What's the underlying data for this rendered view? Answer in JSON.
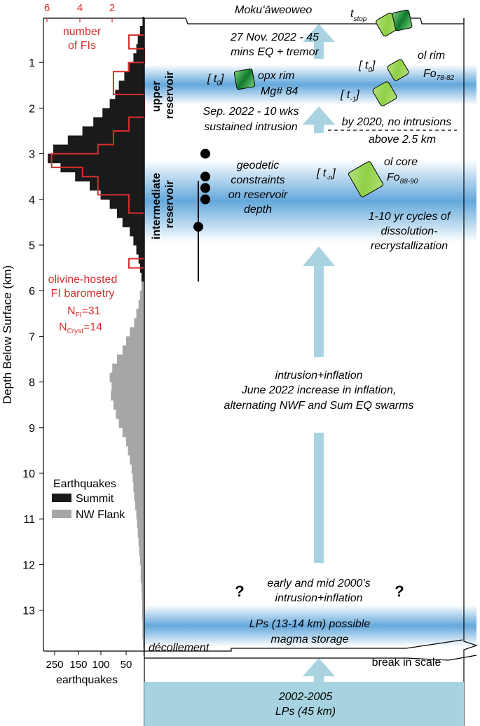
{
  "colors": {
    "summit": "#1a1a1a",
    "nw_flank": "#a6a6a6",
    "fi_line": "#d62e2e",
    "band": "#5ba3d9",
    "arrow": "#a9d3e0",
    "bottom_box": "#a7d3e0",
    "crystal_light": "#9ed858",
    "crystal_dark": "#1e8a36"
  },
  "left_panel": {
    "y_axis_label": "Depth Below Surface (km)",
    "x_axis_label": "earthquakes",
    "x_ticks": [
      "250",
      "150",
      "100",
      "50"
    ],
    "top_ticks": [
      "6",
      "4",
      "2"
    ],
    "top_label_line1": "number",
    "top_label_line2": "of FIs",
    "fi_label_line1": "olivine-hosted",
    "fi_label_line2": "FI barometry",
    "nfi_main": "N",
    "nfi_sub": "FI",
    "nfi_value": "=31",
    "ncryst_main": "N",
    "ncryst_sub": "Cryst",
    "ncryst_value": "=14",
    "legend_title": "Earthquakes",
    "legend_summit": "Summit",
    "legend_nwflank": "NW Flank"
  },
  "depth_ticks": [
    "1",
    "2",
    "3",
    "4",
    "5",
    "6",
    "7",
    "8",
    "9",
    "10",
    "11",
    "12",
    "13"
  ],
  "chart_data": {
    "type": "bar",
    "orientation": "horizontal",
    "y_label": "Depth Below Surface (km)",
    "x_label": "earthquakes",
    "series": [
      {
        "name": "Summit",
        "depth_km": [
          0.1,
          0.3,
          0.5,
          0.7,
          0.9,
          1.1,
          1.3,
          1.5,
          1.7,
          1.9,
          2.1,
          2.3,
          2.5,
          2.7,
          2.9,
          3.1,
          3.3,
          3.5,
          3.7,
          3.9,
          4.1,
          4.3,
          4.5,
          4.7,
          4.9,
          5.1,
          5.3,
          5.5,
          5.7
        ],
        "values": [
          5,
          12,
          18,
          22,
          30,
          45,
          55,
          70,
          80,
          95,
          115,
          140,
          170,
          210,
          250,
          265,
          230,
          190,
          150,
          120,
          95,
          75,
          60,
          40,
          30,
          22,
          16,
          12,
          8
        ]
      },
      {
        "name": "NW Flank",
        "depth_km": [
          5.9,
          6.1,
          6.3,
          6.5,
          6.7,
          6.9,
          7.1,
          7.3,
          7.5,
          7.7,
          7.9,
          8.1,
          8.3,
          8.5,
          8.7,
          8.9,
          9.1,
          9.3,
          9.5,
          9.7,
          9.9,
          10.1,
          10.3,
          10.5,
          10.7,
          10.9,
          11.1,
          11.3,
          11.5,
          11.7,
          11.9,
          12.1,
          12.3,
          12.5,
          12.7,
          12.9,
          13.1,
          13.3,
          13.5,
          13.7,
          13.9
        ],
        "values": [
          8,
          12,
          16,
          22,
          28,
          40,
          50,
          60,
          75,
          88,
          95,
          90,
          92,
          85,
          78,
          70,
          60,
          50,
          45,
          40,
          35,
          32,
          30,
          28,
          25,
          22,
          20,
          18,
          16,
          14,
          12,
          10,
          10,
          8,
          7,
          6,
          6,
          5,
          5,
          4,
          3
        ]
      }
    ],
    "fi_counts": {
      "name": "number of FIs",
      "axis_ticks": [
        6,
        4,
        2
      ],
      "bins": [
        {
          "from": 0.4,
          "to": 0.7,
          "count": 1
        },
        {
          "from": 0.7,
          "to": 1.0,
          "count": 0
        },
        {
          "from": 1.0,
          "to": 1.2,
          "count": 1
        },
        {
          "from": 1.2,
          "to": 1.7,
          "count": 2
        },
        {
          "from": 1.7,
          "to": 2.2,
          "count": 0
        },
        {
          "from": 2.2,
          "to": 2.5,
          "count": 1
        },
        {
          "from": 2.5,
          "to": 2.8,
          "count": 2
        },
        {
          "from": 2.8,
          "to": 3.0,
          "count": 3
        },
        {
          "from": 3.0,
          "to": 3.3,
          "count": 6
        },
        {
          "from": 3.3,
          "to": 3.5,
          "count": 4
        },
        {
          "from": 3.5,
          "to": 3.9,
          "count": 3
        },
        {
          "from": 3.9,
          "to": 4.3,
          "count": 1
        },
        {
          "from": 5.3,
          "to": 5.5,
          "count": 1
        }
      ]
    }
  },
  "main": {
    "summit_label": "Mokuʻāweoweo",
    "tstop_main": "t",
    "tstop_sub": "stop",
    "event_2022_nov_line1": "27 Nov. 2022 - 45",
    "event_2022_nov_line2": "mins EQ + tremor",
    "upper_reservoir_line1": "upper",
    "upper_reservoir_line2": "reservoir",
    "t0_left_open": "[ t",
    "t0_left_sub": "0",
    "t0_left_close": "]",
    "opx_rim_line1": "opx rim",
    "opx_rim_line2": "Mg# 84",
    "ol_rim": "ol rim",
    "fo_rim_main": "Fo",
    "fo_rim_sub": "78-82",
    "t0_right_open": "[ t",
    "t0_right_sub": "0",
    "t0_right_close": "]",
    "tm1_open": "[ t",
    "tm1_sub": "-1",
    "tm1_close": "]",
    "sep_2022_line1": "Sep. 2022 - 10 wks",
    "sep_2022_line2": "sustained intrusion",
    "by_2020_line1": "by 2020, no intrusions",
    "by_2020_line2": "above 2.5 km",
    "intermediate_line1": "intermediate",
    "intermediate_line2": "reservoir",
    "geodetic_line1": "geodetic",
    "geodetic_line2": "constraints",
    "geodetic_line3": "on reservoir",
    "geodetic_line4": "depth",
    "tn_open": "[ t",
    "tn_sub": "-n",
    "tn_close": "]",
    "ol_core": "ol core",
    "fo_core_main": "Fo",
    "fo_core_sub": "88-90",
    "cycles_line1": "1-10 yr cycles of",
    "cycles_line2": "dissolution-",
    "cycles_line3": "recrystallization",
    "inflation_line1": "intrusion+inflation",
    "inflation_line2": "June 2022 increase in inflation,",
    "inflation_line3": "alternating NWF and Sum EQ swarms",
    "question_left": "?",
    "question_right": "?",
    "early2000_line1": "early and mid 2000’s",
    "early2000_line2": "intrusion+inflation",
    "lps_line1": "LPs (13-14 km) possible",
    "lps_line2": "magma storage",
    "decollement": "décollement",
    "break_in_scale": "break in scale",
    "deep_line1": "2002-2005",
    "deep_line2": "LPs (45 km)"
  },
  "geodetic_points_km": [
    3.0,
    3.5,
    3.75,
    4.0,
    4.6
  ],
  "geodetic_range_km": [
    3.6,
    5.8
  ]
}
